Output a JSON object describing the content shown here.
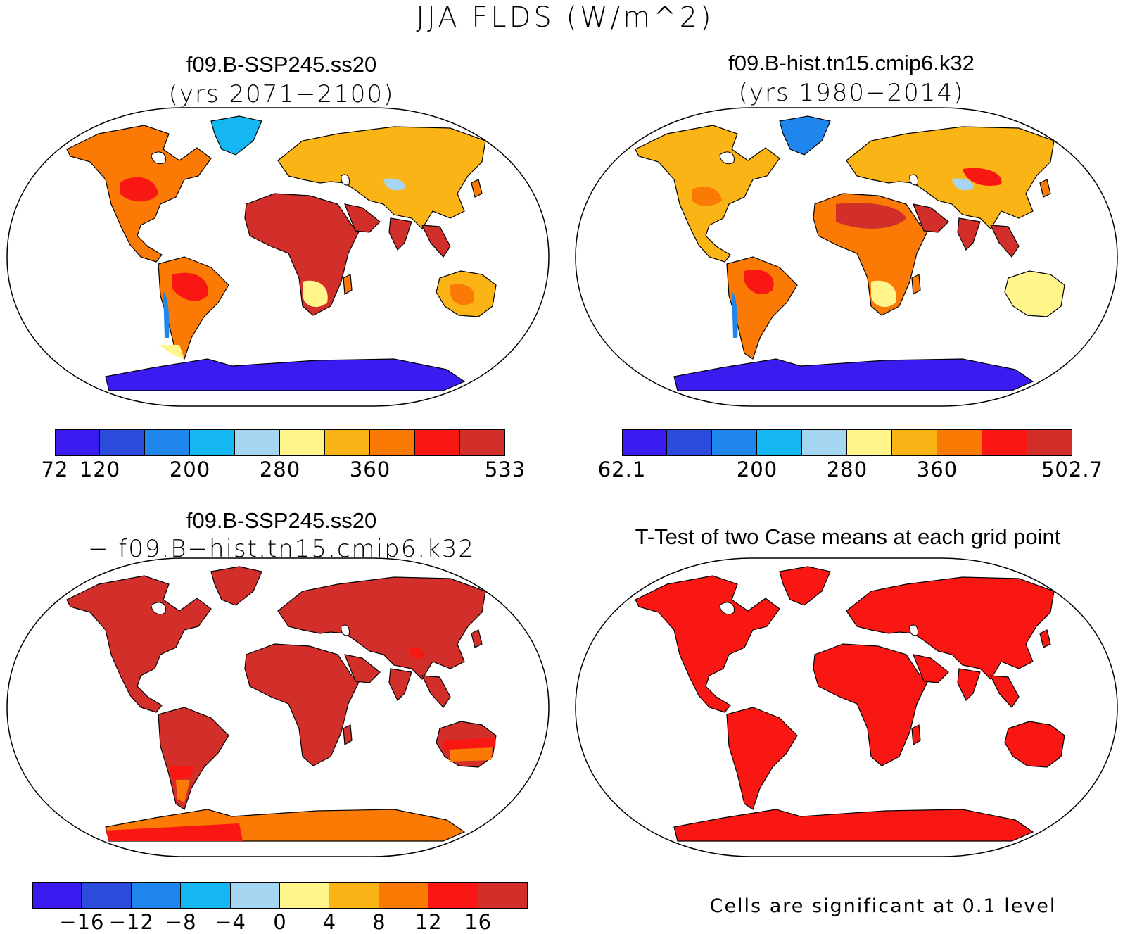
{
  "title": "JJA FLDS (W/m^2)",
  "panels": [
    {
      "id": "case1",
      "title_line1": "f09.B-SSP245.ss20",
      "title_line2": "(yrs 2071−2100)",
      "colorbar": {
        "colors": [
          "#3a1cf0",
          "#2a4bdc",
          "#1f86ee",
          "#15b7f2",
          "#a4d6f2",
          "#fff58a",
          "#fbb416",
          "#fb7a06",
          "#f81712",
          "#d22f2b"
        ],
        "tick_labels": [
          "72",
          "120",
          "200",
          "280",
          "360",
          "533"
        ],
        "tick_boundaries": [
          0,
          1,
          3,
          5,
          7,
          10
        ]
      }
    },
    {
      "id": "case2",
      "title_line1": "f09.B-hist.tn15.cmip6.k32",
      "title_line2": "(yrs 1980−2014)",
      "colorbar": {
        "colors": [
          "#3a1cf0",
          "#2a4bdc",
          "#1f86ee",
          "#15b7f2",
          "#a4d6f2",
          "#fff58a",
          "#fbb416",
          "#fb7a06",
          "#f81712",
          "#d22f2b"
        ],
        "tick_labels": [
          "62.1",
          "200",
          "280",
          "360",
          "502.7"
        ],
        "tick_boundaries": [
          0,
          3,
          5,
          7,
          10
        ]
      }
    },
    {
      "id": "diff",
      "title_line1": "f09.B-SSP245.ss20",
      "title_line2": "− f09.B−hist.tn15.cmip6.k32",
      "colorbar": {
        "colors": [
          "#3a1cf0",
          "#2a4bdc",
          "#1f86ee",
          "#15b7f2",
          "#a4d6f2",
          "#fff58a",
          "#fbb416",
          "#fb7a06",
          "#f81712",
          "#d22f2b"
        ],
        "tick_labels": [
          "−16",
          "−12",
          "−8",
          "−4",
          "0",
          "4",
          "8",
          "12",
          "16"
        ],
        "tick_boundaries": [
          1,
          2,
          3,
          4,
          5,
          6,
          7,
          8,
          9
        ]
      }
    },
    {
      "id": "ttest",
      "title_line1": "T-Test of two Case means at each grid point",
      "footnote": "Cells are significant at 0.1 level"
    }
  ],
  "colors": {
    "ocean": "#ffffff",
    "coast": "#000000",
    "significant": "#f81712"
  }
}
